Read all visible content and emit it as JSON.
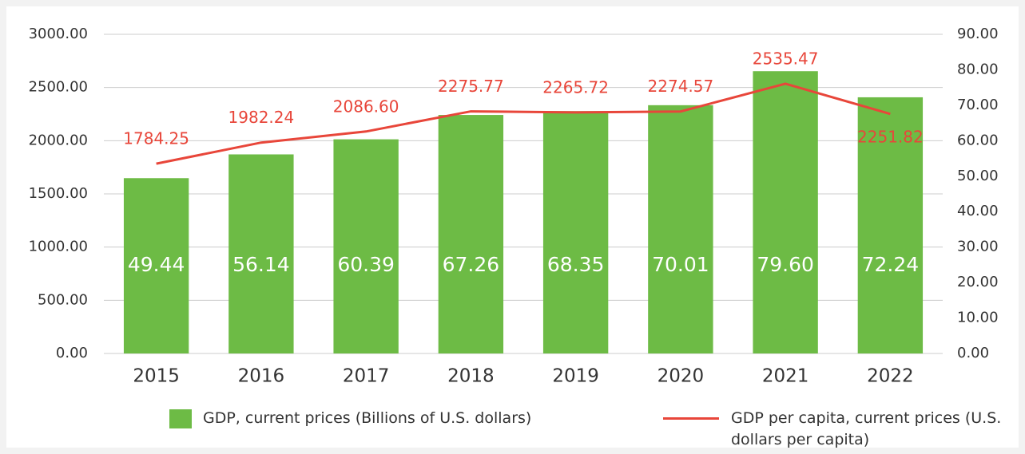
{
  "chart_data": {
    "type": "bar-line",
    "categories": [
      "2015",
      "2016",
      "2017",
      "2018",
      "2019",
      "2020",
      "2021",
      "2022"
    ],
    "series": [
      {
        "name": "GDP, current prices (Billions of U.S. dollars)",
        "color": "#6dbb45",
        "type": "bar",
        "axis": "y2",
        "values": [
          49.44,
          56.14,
          60.39,
          67.26,
          68.35,
          70.01,
          79.6,
          72.24
        ],
        "value_labels": [
          "49.44",
          "56.14",
          "60.39",
          "67.26",
          "68.35",
          "70.01",
          "79.60",
          "72.24"
        ]
      },
      {
        "name": "GDP per capita, current prices (U.S. dollars per capita)",
        "color": "#e8463a",
        "type": "line",
        "values": [
          1784.25,
          1982.24,
          2086.6,
          2275.77,
          2265.72,
          2274.57,
          2535.47,
          2251.82
        ],
        "value_labels": [
          "1784.25",
          "1982.24",
          "2086.60",
          "2275.77",
          "2265.72",
          "2274.57",
          "2535.47",
          "2251.82"
        ]
      }
    ],
    "ylim": [
      0,
      3000
    ],
    "yticks": [
      {
        "value": 0,
        "label": "0.00"
      },
      {
        "value": 500,
        "label": "500.00"
      },
      {
        "value": 1000,
        "label": "1000.00"
      },
      {
        "value": 1500,
        "label": "1500.00"
      },
      {
        "value": 2000,
        "label": "2000.00"
      },
      {
        "value": 2500,
        "label": "2500.00"
      },
      {
        "value": 3000,
        "label": "3000.00"
      }
    ],
    "y2lim": [
      0,
      90
    ],
    "y2ticks": [
      {
        "value": 0,
        "label": "0.00"
      },
      {
        "value": 10,
        "label": "10.00"
      },
      {
        "value": 20,
        "label": "20.00"
      },
      {
        "value": 30,
        "label": "30.00"
      },
      {
        "value": 40,
        "label": "40.00"
      },
      {
        "value": 50,
        "label": "50.00"
      },
      {
        "value": 60,
        "label": "60.00"
      },
      {
        "value": 70,
        "label": "70.00"
      },
      {
        "value": 80,
        "label": "80.00"
      },
      {
        "value": 90,
        "label": "90.00"
      }
    ],
    "grid": true
  }
}
